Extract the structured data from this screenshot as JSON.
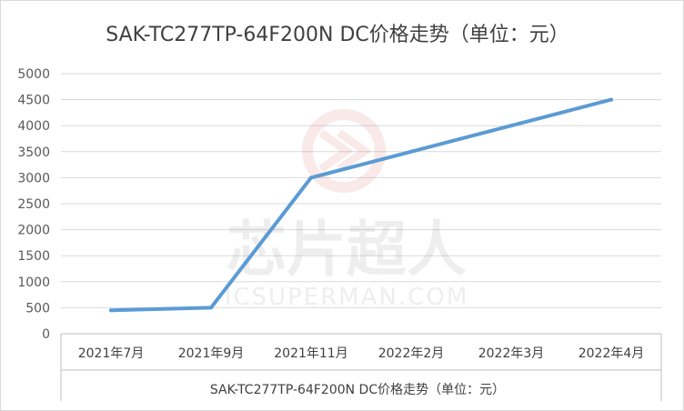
{
  "chart_data": {
    "type": "line",
    "title": "SAK-TC277TP-64F200N DC价格走势（单位：元）",
    "xlabel": "SAK-TC277TP-64F200N DC价格走势（单位：元）",
    "ylabel": "",
    "categories": [
      "2021年7月",
      "2021年9月",
      "2021年11月",
      "2022年2月",
      "2022年3月",
      "2022年4月"
    ],
    "series": [
      {
        "values": [
          450,
          500,
          3000,
          3500,
          4000,
          4500
        ]
      }
    ],
    "ylim": [
      0,
      5000
    ],
    "yticks": [
      0,
      500,
      1000,
      1500,
      2000,
      2500,
      3000,
      3500,
      4000,
      4500,
      5000
    ],
    "grid": true,
    "legend": "none",
    "line_color": "#5b9bd5"
  },
  "watermark": {
    "cn": "芯片超人",
    "en": "ICSUPERMAN.COM"
  }
}
